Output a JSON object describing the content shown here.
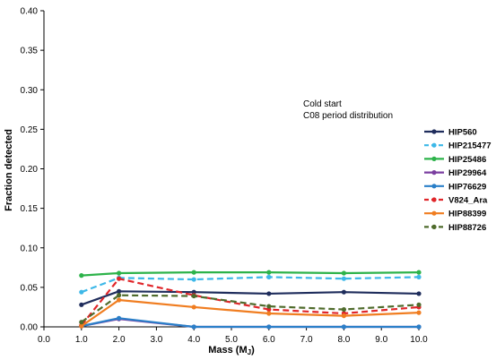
{
  "chart_data": {
    "type": "line",
    "annotation": [
      "Cold start",
      "C08 period distribution"
    ],
    "xlabel": "Mass (M",
    "xlabel_sub": "J",
    "xlabel_close": ")",
    "ylabel": "Fraction detected",
    "xlim": [
      0,
      10
    ],
    "ylim": [
      0,
      0.4
    ],
    "xticks": [
      "0.0",
      "1.0",
      "2.0",
      "3.0",
      "4.0",
      "5.0",
      "6.0",
      "7.0",
      "8.0",
      "9.0",
      "10.0"
    ],
    "yticks": [
      "0.00",
      "0.05",
      "0.10",
      "0.15",
      "0.20",
      "0.25",
      "0.30",
      "0.35",
      "0.40"
    ],
    "grid": false,
    "legend_position": "right",
    "x": [
      1,
      2,
      4,
      6,
      8,
      10
    ],
    "series": [
      {
        "name": "HIP560",
        "color": "#1f2d5c",
        "dashed": false,
        "values": [
          0.028,
          0.045,
          0.044,
          0.042,
          0.044,
          0.042
        ]
      },
      {
        "name": "HIP215477",
        "color": "#3db8e8",
        "dashed": true,
        "values": [
          0.044,
          0.062,
          0.06,
          0.063,
          0.061,
          0.063
        ]
      },
      {
        "name": "HIP25486",
        "color": "#2db34a",
        "dashed": false,
        "values": [
          0.065,
          0.068,
          0.069,
          0.069,
          0.068,
          0.069
        ]
      },
      {
        "name": "HIP29964",
        "color": "#7b3fa0",
        "dashed": false,
        "values": [
          0.001,
          0.01,
          0.0,
          0.0,
          0.0,
          0.0
        ]
      },
      {
        "name": "HIP76629",
        "color": "#2a7fc8",
        "dashed": false,
        "values": [
          0.001,
          0.011,
          0.0,
          0.0,
          0.0,
          0.0
        ]
      },
      {
        "name": "V824_Ara",
        "color": "#e0262a",
        "dashed": true,
        "values": [
          0.002,
          0.061,
          0.04,
          0.022,
          0.017,
          0.025
        ]
      },
      {
        "name": "HIP88399",
        "color": "#f07d20",
        "dashed": false,
        "values": [
          0.001,
          0.034,
          0.025,
          0.017,
          0.014,
          0.018
        ]
      },
      {
        "name": "HIP88726",
        "color": "#4f6b2c",
        "dashed": true,
        "values": [
          0.006,
          0.04,
          0.039,
          0.026,
          0.022,
          0.028
        ]
      }
    ]
  }
}
